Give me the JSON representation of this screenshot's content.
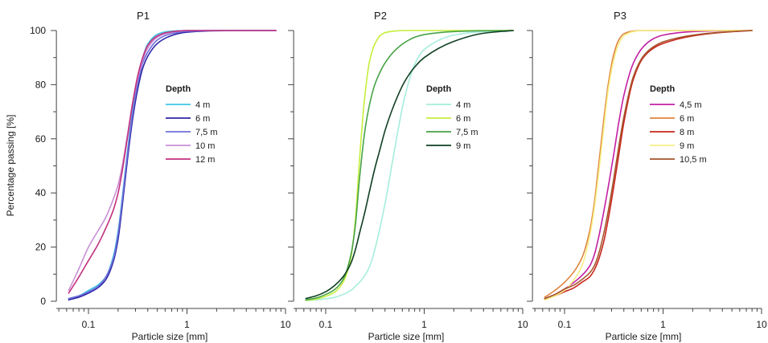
{
  "chart_data": [
    {
      "type": "line",
      "title": "P1",
      "xlabel": "Particle size [mm]",
      "ylabel": "Percentage passing [%]",
      "xscale": "log",
      "xlim": [
        0.05,
        10
      ],
      "ylim": [
        0,
        100
      ],
      "xticks": [
        "0.1",
        "1",
        "10"
      ],
      "yticks": [
        "0",
        "20",
        "40",
        "60",
        "80",
        "100"
      ],
      "grid": false,
      "legend_position": "center",
      "legend_title": "Depth",
      "x": [
        0.063,
        0.08,
        0.1,
        0.125,
        0.15,
        0.18,
        0.2,
        0.22,
        0.25,
        0.28,
        0.315,
        0.355,
        0.4,
        0.5,
        0.63,
        0.8,
        1,
        2,
        4,
        8
      ],
      "series": [
        {
          "name": "4 m",
          "color": "#3ec6e6",
          "y": [
            1,
            2,
            4,
            6,
            9,
            17,
            26,
            38,
            56,
            70,
            82,
            90,
            95,
            98.6,
            99.6,
            99.9,
            100,
            100,
            100,
            100
          ]
        },
        {
          "name": "6 m",
          "color": "#2b24a6",
          "y": [
            0.5,
            1.5,
            3,
            5,
            8,
            15,
            23,
            35,
            53,
            67,
            78,
            86,
            90.5,
            95.2,
            97.5,
            98.8,
            99.4,
            99.9,
            100,
            100
          ]
        },
        {
          "name": "7,5 m",
          "color": "#6f6fd8",
          "y": [
            1,
            2,
            3.5,
            5.5,
            9,
            16,
            25,
            37,
            55,
            69,
            80,
            88,
            92,
            96.5,
            98.4,
            99.3,
            99.7,
            100,
            100,
            100
          ]
        },
        {
          "name": "10 m",
          "color": "#c98fd6",
          "y": [
            4,
            12,
            20,
            26,
            31,
            38,
            43,
            50,
            62,
            73,
            82,
            89,
            93.5,
            97.5,
            99,
            99.7,
            100,
            100,
            100,
            100
          ]
        },
        {
          "name": "12 m",
          "color": "#c1307e",
          "y": [
            3,
            9,
            15,
            21,
            27,
            34,
            40,
            48,
            61,
            73,
            83,
            90,
            94.5,
            98,
            99.3,
            99.8,
            100,
            100,
            100,
            100
          ]
        }
      ]
    },
    {
      "type": "line",
      "title": "P2",
      "xlabel": "Particle size [mm]",
      "xscale": "log",
      "xlim": [
        0.05,
        10
      ],
      "ylim": [
        0,
        100
      ],
      "xticks": [
        "0.1",
        "1",
        "10"
      ],
      "grid": false,
      "legend_position": "center",
      "legend_title": "Depth",
      "x": [
        0.063,
        0.08,
        0.1,
        0.125,
        0.15,
        0.18,
        0.2,
        0.22,
        0.25,
        0.28,
        0.315,
        0.355,
        0.4,
        0.5,
        0.63,
        0.8,
        1,
        2,
        4,
        8
      ],
      "series": [
        {
          "name": "4 m",
          "color": "#a6eddc",
          "y": [
            0.2,
            0.5,
            0.9,
            1.5,
            2.5,
            4,
            5.5,
            7,
            9.5,
            13,
            19,
            27,
            36,
            56,
            75,
            87.5,
            93,
            98.3,
            99.6,
            100
          ]
        },
        {
          "name": "6 m",
          "color": "#c6ee3c",
          "y": [
            0.3,
            0.8,
            1.8,
            3.5,
            7,
            16,
            30,
            52,
            76,
            89,
            95,
            98,
            99.2,
            99.8,
            100,
            100,
            100,
            100,
            100,
            100
          ]
        },
        {
          "name": "7,5 m",
          "color": "#47a347",
          "y": [
            0.5,
            1.2,
            2.5,
            4.5,
            8,
            17,
            28,
            45,
            63,
            73,
            80,
            84.5,
            88,
            92.5,
            95.5,
            97.5,
            98.5,
            99.6,
            99.9,
            100
          ]
        },
        {
          "name": "9 m",
          "color": "#0f3f22",
          "y": [
            1,
            2,
            3.5,
            6,
            9,
            14,
            19,
            25,
            33,
            41,
            49,
            56,
            63,
            73,
            81,
            86.5,
            90,
            96,
            99,
            100
          ]
        }
      ]
    },
    {
      "type": "line",
      "title": "P3",
      "xlabel": "Particle size [mm]",
      "xscale": "log",
      "xlim": [
        0.05,
        10
      ],
      "ylim": [
        0,
        100
      ],
      "xticks": [
        "0.1",
        "1",
        "10"
      ],
      "grid": false,
      "legend_position": "center",
      "legend_title": "Depth",
      "x": [
        0.063,
        0.08,
        0.1,
        0.125,
        0.15,
        0.18,
        0.2,
        0.22,
        0.25,
        0.28,
        0.315,
        0.355,
        0.4,
        0.5,
        0.63,
        0.8,
        1,
        2,
        4,
        8
      ],
      "series": [
        {
          "name": "4,5 m",
          "color": "#c320a2",
          "y": [
            1,
            2.5,
            4.5,
            7,
            9.5,
            13,
            17,
            23,
            33,
            43,
            54,
            66,
            76,
            88,
            94,
            97,
            98.3,
            99.6,
            99.9,
            100
          ]
        },
        {
          "name": "6 m",
          "color": "#e0843f",
          "y": [
            1.5,
            4,
            7,
            11,
            16,
            26,
            36,
            49,
            67,
            81,
            91,
            96.5,
            98.8,
            99.8,
            100,
            100,
            100,
            100,
            100,
            100
          ]
        },
        {
          "name": "8 m",
          "color": "#c7261e",
          "y": [
            0.8,
            2,
            3.5,
            5,
            7,
            9,
            11.5,
            15,
            22,
            31,
            42,
            54,
            66,
            82,
            90,
            93.5,
            95.2,
            98,
            99.3,
            100
          ]
        },
        {
          "name": "9 m",
          "color": "#f6ef84",
          "y": [
            0.5,
            2,
            4,
            8,
            13,
            24,
            34,
            46,
            64,
            79,
            89,
            95,
            98,
            99.6,
            100,
            100,
            100,
            100,
            100,
            100
          ]
        },
        {
          "name": "10,5 m",
          "color": "#a4552c",
          "y": [
            1,
            2.5,
            4.5,
            6,
            8,
            10.5,
            13,
            17,
            25,
            34,
            45,
            57,
            68,
            83,
            90.5,
            94,
            95.8,
            98.3,
            99.4,
            100
          ]
        }
      ]
    }
  ]
}
